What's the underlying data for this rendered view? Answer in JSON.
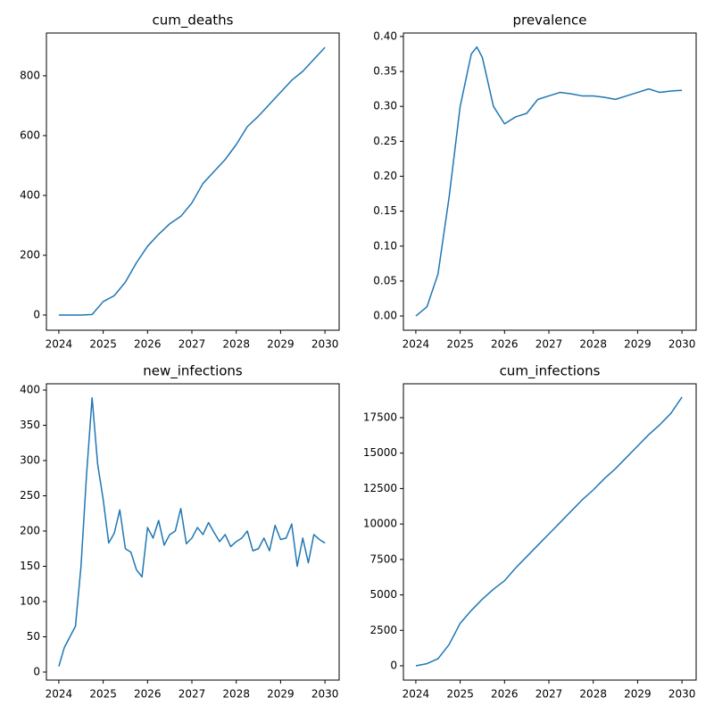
{
  "chart_data": [
    {
      "type": "line",
      "title": "cum_deaths",
      "x": [
        2024,
        2024.25,
        2024.5,
        2024.75,
        2025,
        2025.25,
        2025.5,
        2025.75,
        2026,
        2026.25,
        2026.5,
        2026.75,
        2027,
        2027.25,
        2027.5,
        2027.75,
        2028,
        2028.25,
        2028.5,
        2028.75,
        2029,
        2029.25,
        2029.5,
        2029.75,
        2030
      ],
      "series": [
        {
          "color": "#1f77b4",
          "values": [
            0,
            0,
            0,
            2,
            45,
            65,
            110,
            175,
            230,
            270,
            305,
            330,
            375,
            440,
            480,
            520,
            570,
            630,
            665,
            705,
            745,
            785,
            815,
            855,
            895
          ]
        }
      ],
      "xlim": [
        2023.72,
        2030.32
      ],
      "xticks": [
        2024,
        2025,
        2026,
        2027,
        2028,
        2029,
        2030
      ],
      "ylim": [
        -50.7,
        943
      ],
      "yticks": [
        0,
        200,
        400,
        600,
        800
      ]
    },
    {
      "type": "line",
      "title": "prevalence",
      "x": [
        2024,
        2024.25,
        2024.5,
        2024.75,
        2025,
        2025.25,
        2025.375,
        2025.5,
        2025.75,
        2026,
        2026.25,
        2026.5,
        2026.75,
        2027,
        2027.25,
        2027.5,
        2027.75,
        2028,
        2028.25,
        2028.5,
        2028.75,
        2029,
        2029.25,
        2029.5,
        2029.75,
        2030
      ],
      "series": [
        {
          "color": "#1f77b4",
          "values": [
            0,
            0.013,
            0.06,
            0.17,
            0.3,
            0.375,
            0.385,
            0.37,
            0.3,
            0.275,
            0.285,
            0.29,
            0.31,
            0.315,
            0.32,
            0.318,
            0.315,
            0.315,
            0.313,
            0.31,
            0.315,
            0.32,
            0.325,
            0.32,
            0.322,
            0.323
          ]
        }
      ],
      "xlim": [
        2023.72,
        2030.32
      ],
      "xticks": [
        2024,
        2025,
        2026,
        2027,
        2028,
        2029,
        2030
      ],
      "ylim": [
        -0.0204,
        0.405
      ],
      "yticks": [
        {
          "value": 0,
          "label": "0.00"
        },
        {
          "value": 0.05,
          "label": "0.05"
        },
        {
          "value": 0.1,
          "label": "0.10"
        },
        {
          "value": 0.15,
          "label": "0.15"
        },
        {
          "value": 0.2,
          "label": "0.20"
        },
        {
          "value": 0.25,
          "label": "0.25"
        },
        {
          "value": 0.3,
          "label": "0.30"
        },
        {
          "value": 0.35,
          "label": "0.35"
        },
        {
          "value": 0.4,
          "label": "0.40"
        }
      ]
    },
    {
      "type": "line",
      "title": "new_infections",
      "x": [
        2024,
        2024.125,
        2024.25,
        2024.375,
        2024.5,
        2024.625,
        2024.75,
        2024.875,
        2025,
        2025.125,
        2025.25,
        2025.375,
        2025.5,
        2025.625,
        2025.75,
        2025.875,
        2026,
        2026.125,
        2026.25,
        2026.375,
        2026.5,
        2026.625,
        2026.75,
        2026.875,
        2027,
        2027.125,
        2027.25,
        2027.375,
        2027.5,
        2027.625,
        2027.75,
        2027.875,
        2028,
        2028.125,
        2028.25,
        2028.375,
        2028.5,
        2028.625,
        2028.75,
        2028.875,
        2029,
        2029.125,
        2029.25,
        2029.375,
        2029.5,
        2029.625,
        2029.75,
        2029.875,
        2030
      ],
      "series": [
        {
          "color": "#1f77b4",
          "values": [
            8,
            35,
            50,
            65,
            150,
            280,
            389,
            295,
            245,
            183,
            197,
            230,
            175,
            170,
            145,
            135,
            205,
            190,
            215,
            180,
            195,
            200,
            232,
            182,
            190,
            205,
            195,
            212,
            198,
            185,
            195,
            178,
            185,
            190,
            200,
            172,
            175,
            190,
            172,
            208,
            188,
            190,
            210,
            150,
            190,
            155,
            195,
            188,
            183
          ]
        }
      ],
      "xlim": [
        2023.72,
        2030.32
      ],
      "xticks": [
        2024,
        2025,
        2026,
        2027,
        2028,
        2029,
        2030
      ],
      "ylim": [
        -11.4,
        408.9
      ],
      "yticks": [
        0,
        50,
        100,
        150,
        200,
        250,
        300,
        350,
        400
      ]
    },
    {
      "type": "line",
      "title": "cum_infections",
      "x": [
        2024,
        2024.25,
        2024.5,
        2024.75,
        2025,
        2025.25,
        2025.5,
        2025.75,
        2026,
        2026.25,
        2026.5,
        2026.75,
        2027,
        2027.25,
        2027.5,
        2027.75,
        2028,
        2028.25,
        2028.5,
        2028.75,
        2029,
        2029.25,
        2029.5,
        2029.75,
        2030
      ],
      "series": [
        {
          "color": "#1f77b4",
          "values": [
            0,
            150,
            500,
            1500,
            3000,
            3900,
            4700,
            5400,
            6000,
            6900,
            7700,
            8500,
            9300,
            10100,
            10900,
            11700,
            12400,
            13200,
            13900,
            14700,
            15500,
            16300,
            17000,
            17800,
            18950
          ]
        }
      ],
      "xlim": [
        2023.72,
        2030.32
      ],
      "xticks": [
        2024,
        2025,
        2026,
        2027,
        2028,
        2029,
        2030
      ],
      "ylim": [
        -1007,
        19890
      ],
      "yticks": [
        0,
        2500,
        5000,
        7500,
        10000,
        12500,
        15000,
        17500
      ]
    }
  ]
}
